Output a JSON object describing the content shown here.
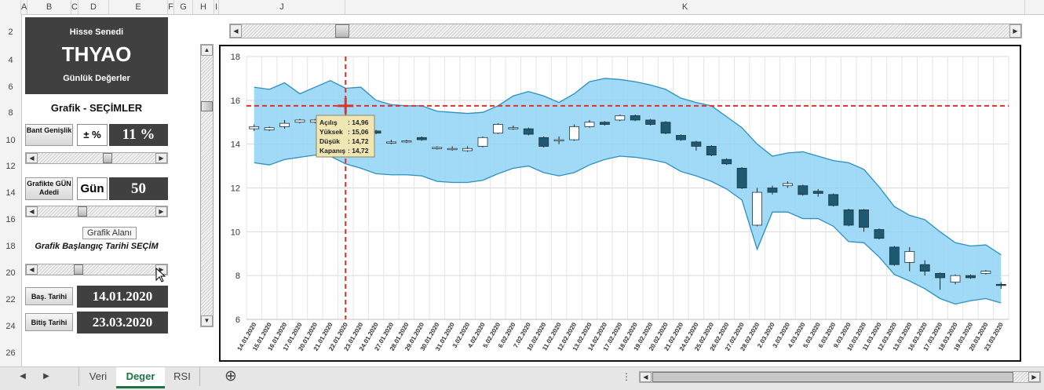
{
  "columns": [
    "A",
    "B",
    "C",
    "D",
    "E",
    "F",
    "G",
    "H",
    "I",
    "J",
    "K"
  ],
  "rows": [
    "2",
    "4",
    "6",
    "8",
    "10",
    "12",
    "14",
    "16",
    "18",
    "20",
    "22",
    "24",
    "26"
  ],
  "panel": {
    "sub1": "Hisse Senedi",
    "symbol": "THYAO",
    "sub2": "Günlük Değerler",
    "section_title": "Grafik - SEÇİMLER",
    "band_button": "Bant Genişlik",
    "band_sym": "± %",
    "band_value": "11 %",
    "days_button": "Grafikte GÜN Adedi",
    "days_label": "Gün",
    "days_value": "50",
    "tooltip": "Grafik Alanı",
    "start_label": "Grafik Başlangıç Tarihi SEÇİM",
    "start_button": "Baş. Tarihi",
    "start_value": "14.01.2020",
    "end_button": "Bitiş Tarihi",
    "end_value": "23.03.2020"
  },
  "sheet_tabs": [
    "Veri",
    "Deger",
    "RSI"
  ],
  "active_tab": "Deger",
  "crosshair": {
    "date_index": 6,
    "price": 15.75
  },
  "data_tooltip": {
    "rows": [
      {
        "label": "Açılış",
        "value": ": 14,96"
      },
      {
        "label": "Yüksek",
        "value": ": 15,06"
      },
      {
        "label": "Düşük",
        "value": ": 14,72"
      },
      {
        "label": "Kapanış",
        "value": ": 14,72"
      }
    ]
  },
  "colors": {
    "band_fill": "#8fd3f4",
    "band_line": "#2a8fc2",
    "candle_down": "#1e5a72",
    "candle_up": "#ffffff",
    "crosshair": "#e0302a",
    "panel_dark": "#404040"
  },
  "chart_data": {
    "type": "candlestick",
    "ylim": [
      6,
      18
    ],
    "yticks": [
      6,
      8,
      10,
      12,
      14,
      16,
      18
    ],
    "grid": true,
    "categories": [
      "14.01.2020",
      "15.01.2020",
      "16.01.2020",
      "17.01.2020",
      "20.01.2020",
      "21.01.2020",
      "22.01.2020",
      "23.01.2020",
      "24.01.2020",
      "27.01.2020",
      "28.01.2020",
      "29.01.2020",
      "30.01.2020",
      "31.01.2020",
      "3.02.2020",
      "4.02.2020",
      "5.02.2020",
      "6.02.2020",
      "7.02.2020",
      "10.02.2020",
      "11.02.2020",
      "12.02.2020",
      "13.02.2020",
      "14.02.2020",
      "17.02.2020",
      "18.02.2020",
      "19.02.2020",
      "20.02.2020",
      "21.02.2020",
      "24.02.2020",
      "25.02.2020",
      "26.02.2020",
      "27.02.2020",
      "28.02.2020",
      "2.03.2020",
      "3.03.2020",
      "4.03.2020",
      "5.03.2020",
      "6.03.2020",
      "9.03.2020",
      "10.03.2020",
      "11.03.2020",
      "12.03.2020",
      "13.03.2020",
      "16.03.2020",
      "17.03.2020",
      "18.03.2020",
      "19.03.2020",
      "20.03.2020",
      "23.03.2020"
    ],
    "open": [
      14.7,
      14.65,
      14.8,
      15.0,
      15.0,
      15.0,
      14.96,
      14.9,
      14.6,
      14.1,
      14.15,
      14.3,
      13.85,
      13.8,
      13.7,
      13.9,
      14.5,
      14.75,
      14.7,
      14.3,
      14.15,
      14.2,
      14.8,
      15.0,
      15.1,
      15.3,
      15.1,
      15.0,
      14.4,
      14.1,
      13.9,
      13.3,
      12.9,
      10.3,
      12.0,
      12.1,
      12.1,
      11.85,
      11.7,
      11.0,
      11.0,
      10.1,
      9.3,
      8.6,
      8.5,
      8.1,
      7.7,
      8.0,
      8.1,
      7.6
    ],
    "close": [
      14.8,
      14.75,
      14.95,
      15.1,
      15.1,
      15.0,
      14.72,
      14.95,
      14.5,
      14.1,
      14.15,
      14.2,
      13.85,
      13.8,
      13.8,
      14.3,
      14.9,
      14.75,
      14.45,
      13.9,
      14.2,
      14.8,
      15.0,
      14.9,
      15.3,
      15.1,
      14.9,
      14.5,
      14.2,
      13.9,
      13.5,
      13.1,
      12.0,
      11.8,
      11.8,
      12.2,
      11.7,
      11.75,
      11.2,
      10.3,
      10.2,
      9.7,
      8.5,
      9.1,
      8.2,
      7.9,
      8.0,
      7.9,
      8.2,
      7.55
    ],
    "high": [
      14.9,
      14.8,
      15.1,
      15.15,
      15.15,
      15.1,
      15.06,
      15.05,
      14.65,
      14.2,
      14.2,
      14.35,
      13.9,
      13.9,
      13.9,
      14.35,
      14.95,
      14.85,
      14.75,
      14.35,
      14.35,
      14.9,
      15.1,
      15.05,
      15.35,
      15.35,
      15.15,
      15.05,
      14.45,
      14.15,
      13.95,
      13.35,
      12.95,
      12.0,
      12.1,
      12.3,
      12.15,
      11.95,
      11.75,
      11.05,
      11.05,
      10.15,
      9.35,
      9.3,
      8.7,
      8.15,
      8.05,
      8.05,
      8.25,
      7.7
    ],
    "low": [
      14.6,
      14.6,
      14.7,
      14.95,
      14.95,
      14.9,
      14.72,
      14.8,
      14.45,
      14.0,
      14.05,
      14.15,
      13.75,
      13.7,
      13.65,
      13.85,
      14.45,
      14.65,
      14.4,
      13.85,
      14.0,
      14.15,
      14.75,
      14.85,
      15.05,
      15.05,
      14.85,
      14.45,
      14.15,
      13.7,
      13.45,
      13.05,
      11.95,
      10.25,
      11.7,
      12.0,
      11.65,
      11.6,
      11.15,
      10.25,
      10.0,
      9.65,
      8.45,
      8.2,
      8.0,
      7.35,
      7.6,
      7.85,
      8.05,
      7.4
    ],
    "band_upper": [
      16.6,
      16.5,
      16.8,
      16.3,
      16.6,
      16.9,
      16.55,
      16.6,
      16.0,
      15.8,
      15.75,
      15.75,
      15.5,
      15.45,
      15.4,
      15.45,
      15.75,
      16.2,
      16.4,
      16.2,
      15.9,
      16.3,
      16.85,
      17.0,
      16.95,
      16.85,
      16.7,
      16.5,
      16.1,
      15.9,
      15.75,
      15.25,
      14.75,
      14.0,
      13.45,
      13.6,
      13.65,
      13.45,
      13.25,
      13.15,
      12.85,
      12.05,
      11.15,
      10.75,
      10.55,
      10.0,
      9.5,
      9.35,
      9.4,
      8.95
    ],
    "band_lower": [
      13.15,
      13.05,
      13.3,
      13.4,
      13.5,
      13.45,
      13.1,
      12.9,
      12.65,
      12.6,
      12.6,
      12.55,
      12.3,
      12.25,
      12.25,
      12.35,
      12.65,
      12.9,
      13.0,
      12.7,
      12.55,
      12.7,
      13.05,
      13.3,
      13.45,
      13.4,
      13.3,
      13.15,
      12.75,
      12.55,
      12.3,
      11.95,
      11.45,
      9.2,
      10.9,
      10.9,
      10.6,
      10.6,
      10.25,
      9.55,
      9.5,
      8.85,
      8.05,
      7.75,
      7.4,
      6.95,
      6.7,
      6.85,
      6.95,
      6.75
    ]
  }
}
